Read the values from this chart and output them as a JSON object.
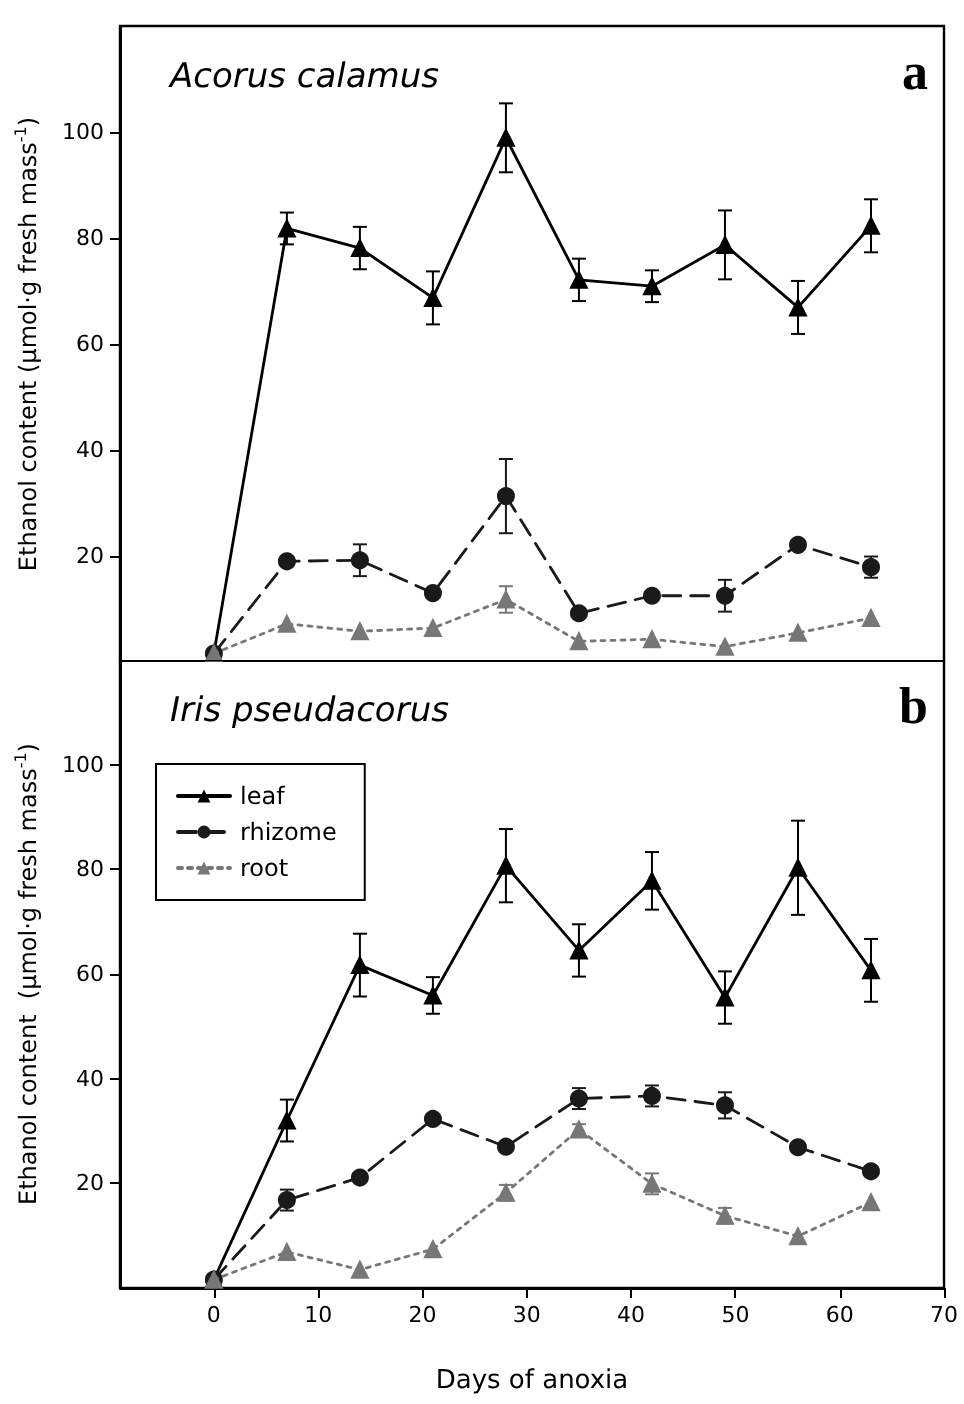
{
  "chart_data": [
    {
      "type": "line",
      "title": "Acorus calamus",
      "ylabel": "Ethanol content (µmol·g fresh mass$^{-1}$)",
      "annotations": [
        "a"
      ],
      "x": [
        0,
        7,
        14,
        21,
        28,
        35,
        42,
        49,
        56,
        63
      ],
      "series": [
        {
          "color": "#000000",
          "marker": "triangle",
          "line_style": "solid",
          "values": [
            1.6,
            81.8,
            78.1,
            68.7,
            98.9,
            72.1,
            70.9,
            78.7,
            66.9,
            82.3
          ],
          "errors": [
            null,
            3,
            4,
            5,
            6.5,
            4,
            3,
            6.5,
            5,
            5
          ]
        },
        {
          "color": "#1a1a1a",
          "marker": "circle",
          "line_style": "dashed",
          "values": [
            1.6,
            19,
            19.2,
            13,
            31.3,
            9.2,
            12.5,
            12.5,
            22.1,
            17.9
          ],
          "errors": [
            null,
            null,
            3,
            null,
            7,
            null,
            null,
            3,
            null,
            2
          ]
        },
        {
          "color": "#777777",
          "marker": "triangle",
          "line_style": "dotted",
          "values": [
            1.6,
            7.2,
            5.8,
            6.4,
            11.8,
            3.9,
            4.3,
            2.9,
            5.5,
            8.3
          ],
          "errors": [
            null,
            null,
            null,
            null,
            2.5,
            null,
            null,
            null,
            null,
            null
          ]
        }
      ],
      "xlim": [
        -9,
        70
      ],
      "xticks": [
        0,
        10,
        20,
        30,
        40,
        50,
        60,
        70
      ],
      "ylim": [
        0,
        120
      ],
      "yticks": [
        20,
        40,
        60,
        80,
        100
      ],
      "tick_labels": "y",
      "grid": false
    },
    {
      "type": "line",
      "title": "Iris pseudacorus",
      "xlabel": "Days of anoxia",
      "ylabel": "Ethanol content  (µmol·g fresh mass$^{-1}$)",
      "annotations": [
        "b"
      ],
      "x": [
        0,
        7,
        14,
        21,
        28,
        35,
        42,
        49,
        56,
        63
      ],
      "series": [
        {
          "name": "leaf",
          "color": "#000000",
          "marker": "triangle",
          "line_style": "solid",
          "values": [
            1.6,
            32,
            61.7,
            55.9,
            80.7,
            64.5,
            77.8,
            55.5,
            80.3,
            60.7
          ],
          "errors": [
            null,
            4,
            6,
            3.5,
            7,
            5,
            5.5,
            5,
            9,
            6
          ]
        },
        {
          "name": "rhizome",
          "color": "#1a1a1a",
          "marker": "circle",
          "line_style": "dashed",
          "values": [
            1.6,
            16.8,
            21.1,
            32.3,
            27,
            36.2,
            36.7,
            34.9,
            26.9,
            22.3
          ],
          "errors": [
            null,
            2,
            null,
            null,
            null,
            2,
            2,
            2.5,
            null,
            null
          ]
        },
        {
          "name": "root",
          "color": "#777777",
          "marker": "triangle",
          "line_style": "dotted",
          "values": [
            1.6,
            6.9,
            3.5,
            7.4,
            18.2,
            30.3,
            19.9,
            13.8,
            9.9,
            16.4
          ],
          "errors": [
            null,
            null,
            null,
            null,
            1.5,
            1,
            2,
            1.5,
            null,
            null
          ]
        }
      ],
      "xlim": [
        -9,
        70
      ],
      "xticks": [
        0,
        10,
        20,
        30,
        40,
        50,
        60,
        70
      ],
      "ylim": [
        0,
        120
      ],
      "yticks": [
        20,
        40,
        60,
        80,
        100
      ],
      "legend": "top left",
      "grid": false
    }
  ]
}
